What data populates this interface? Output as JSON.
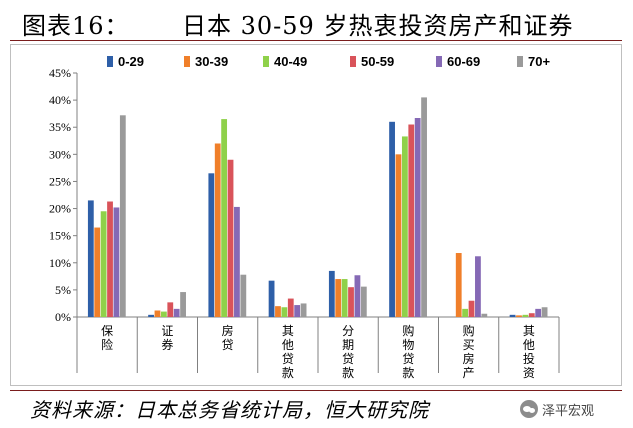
{
  "header": {
    "label": "图表16：",
    "title": "日本 30-59 岁热衷投资房产和证券"
  },
  "footer": {
    "source": "资料来源：日本总务省统计局，恒大研究院",
    "watermark": "泽平宏观",
    "watermark_icon": "wechat-icon"
  },
  "chart_data": {
    "type": "bar",
    "categories": [
      "保险",
      "证券",
      "房贷",
      "其他贷款",
      "分期贷款",
      "购物贷款",
      "购买房产",
      "其他投资"
    ],
    "category_labels_vertical": [
      [
        "保",
        "险"
      ],
      [
        "证",
        "券"
      ],
      [
        "房",
        "贷"
      ],
      [
        "其",
        "他",
        "贷",
        "款"
      ],
      [
        "分",
        "期",
        "贷",
        "款"
      ],
      [
        "购",
        "物",
        "贷",
        "款"
      ],
      [
        "购",
        "买",
        "房",
        "产"
      ],
      [
        "其",
        "他",
        "投",
        "资"
      ]
    ],
    "series": [
      {
        "name": "0-29",
        "color": "#2e5fa8",
        "values": [
          21.5,
          0.4,
          26.5,
          6.7,
          8.5,
          36.0,
          0.0,
          0.4
        ]
      },
      {
        "name": "30-39",
        "color": "#f07f2a",
        "values": [
          16.5,
          1.2,
          32.0,
          2.0,
          7.0,
          30.0,
          11.8,
          0.3
        ]
      },
      {
        "name": "40-49",
        "color": "#8fd14a",
        "values": [
          19.5,
          1.0,
          36.5,
          1.8,
          7.0,
          33.3,
          1.5,
          0.4
        ]
      },
      {
        "name": "50-59",
        "color": "#d9535a",
        "values": [
          21.3,
          2.7,
          29.0,
          3.4,
          5.5,
          35.5,
          3.0,
          0.7
        ]
      },
      {
        "name": "60-69",
        "color": "#8569b5",
        "values": [
          20.2,
          1.5,
          20.3,
          2.2,
          7.7,
          36.7,
          11.2,
          1.5
        ]
      },
      {
        "name": "70+",
        "color": "#9a9a9a",
        "values": [
          37.2,
          4.6,
          7.8,
          2.5,
          5.6,
          40.5,
          0.6,
          1.8
        ]
      }
    ],
    "ylim": [
      0,
      45
    ],
    "yticks": [
      0,
      5,
      10,
      15,
      20,
      25,
      30,
      35,
      40,
      45
    ],
    "ytick_labels": [
      "0%",
      "5%",
      "10%",
      "15%",
      "20%",
      "25%",
      "30%",
      "35%",
      "40%",
      "45%"
    ],
    "xlabel": "",
    "ylabel": "",
    "grid": false,
    "legend_position": "top"
  }
}
